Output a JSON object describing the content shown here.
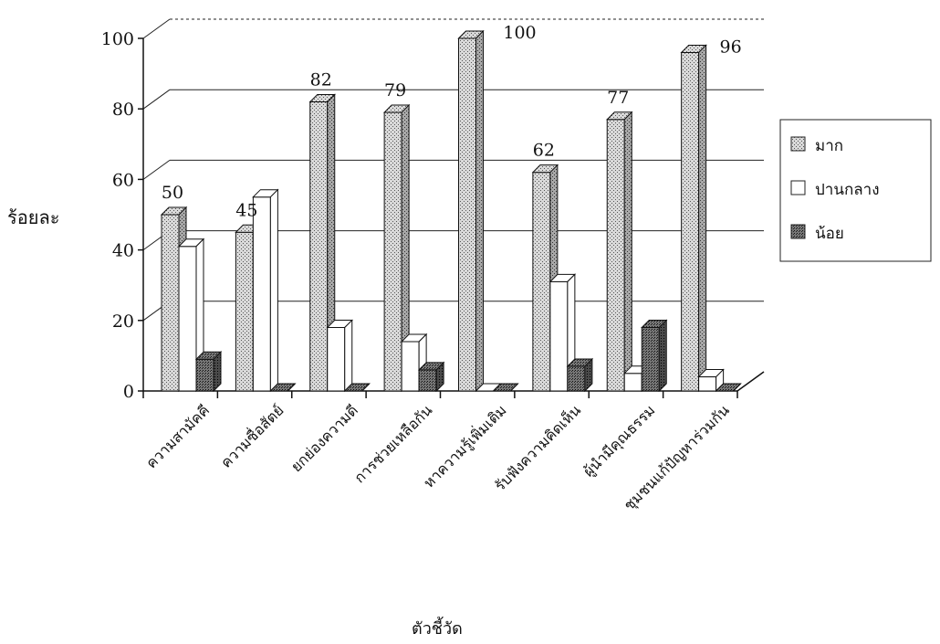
{
  "chart_data": {
    "type": "bar",
    "title": "",
    "xlabel": "ตัวชี้วัด",
    "ylabel": "ร้อยละ",
    "ylim": [
      0,
      100
    ],
    "yticks": [
      "0",
      "20",
      "40",
      "60",
      "80",
      "100"
    ],
    "grid": true,
    "legend_position": "right",
    "categories": [
      "ความสามัคคี",
      "ความซื่อสัตย์",
      "ยกย่องความดี",
      "การช่วยเหลือกัน",
      "หาความรู้เพิ่มเติม",
      "รับฟังความคิดเห็น",
      "ผู้นำมีคุณธรรม",
      "ชุมชนแก้ปัญหาร่วมกัน"
    ],
    "series": [
      {
        "name": "มาก",
        "values": [
          50,
          45,
          82,
          79,
          100,
          62,
          77,
          96
        ],
        "color": "#c8c8c8"
      },
      {
        "name": "ปานกลาง",
        "values": [
          41,
          55,
          18,
          14,
          0,
          31,
          5,
          4
        ],
        "color": "#ffffff"
      },
      {
        "name": "น้อย",
        "values": [
          9,
          0,
          0,
          6,
          0,
          7,
          18,
          0
        ],
        "color": "#6e6e6e"
      }
    ],
    "data_labels": [
      "50",
      "45",
      "82",
      "79",
      "100",
      "62",
      "77",
      "96"
    ]
  }
}
